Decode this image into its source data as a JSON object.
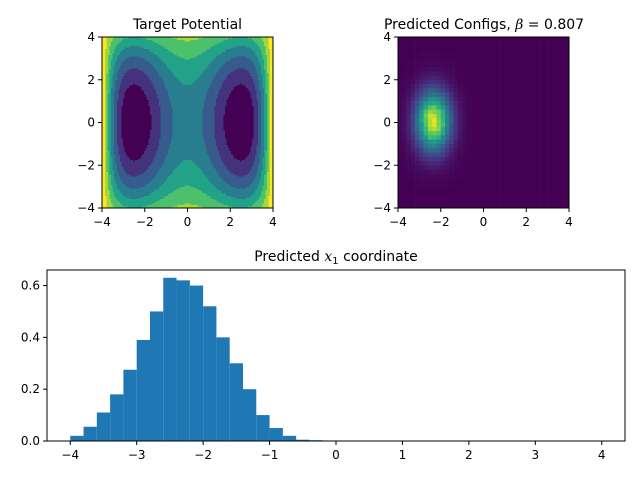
{
  "chart_data": [
    {
      "type": "heatmap",
      "subtype": "contour",
      "title": "Target Potential",
      "xlim": [
        -4,
        4
      ],
      "ylim": [
        -4,
        4
      ],
      "xticks": [
        "−4",
        "−2",
        "0",
        "2",
        "4"
      ],
      "yticks": [
        "−4",
        "−2",
        "0",
        "2",
        "4"
      ],
      "colormap": "viridis",
      "description_of_field": "double-well potential with two minima near x=-2.5 and x=2.5, y=0"
    },
    {
      "type": "heatmap",
      "title_prefix": "Predicted Configs, ",
      "title_symbol": "β",
      "title_suffix": " = 0.807",
      "xlim": [
        -4,
        4
      ],
      "ylim": [
        -4,
        4
      ],
      "xticks": [
        "−4",
        "−2",
        "0",
        "2",
        "4"
      ],
      "yticks": [
        "−4",
        "−2",
        "0",
        "2",
        "4"
      ],
      "colormap": "viridis",
      "peak_center": [
        -2.35,
        0.05
      ],
      "peak_spread": [
        0.55,
        0.95
      ]
    },
    {
      "type": "bar",
      "subtype": "histogram",
      "title_prefix": "Predicted ",
      "title_var": "x",
      "title_sub": "1",
      "title_suffix": " coordinate",
      "xlim": [
        -4.35,
        4.35
      ],
      "ylim": [
        0,
        0.66
      ],
      "xticks": [
        "−4",
        "−3",
        "−2",
        "−1",
        "0",
        "1",
        "2",
        "3",
        "4"
      ],
      "yticks": [
        "0.0",
        "0.2",
        "0.4",
        "0.6"
      ],
      "bin_edges": [
        -4.0,
        -3.8,
        -3.6,
        -3.4,
        -3.2,
        -3.0,
        -2.8,
        -2.6,
        -2.4,
        -2.2,
        -2.0,
        -1.8,
        -1.6,
        -1.4,
        -1.2,
        -1.0,
        -0.8,
        -0.6,
        -0.4,
        -0.2,
        0.0
      ],
      "values": [
        0.02,
        0.055,
        0.11,
        0.18,
        0.275,
        0.39,
        0.5,
        0.63,
        0.62,
        0.6,
        0.52,
        0.4,
        0.3,
        0.2,
        0.1,
        0.05,
        0.02,
        0.005,
        0.003,
        0.001
      ],
      "color": "#1f77b4"
    }
  ]
}
